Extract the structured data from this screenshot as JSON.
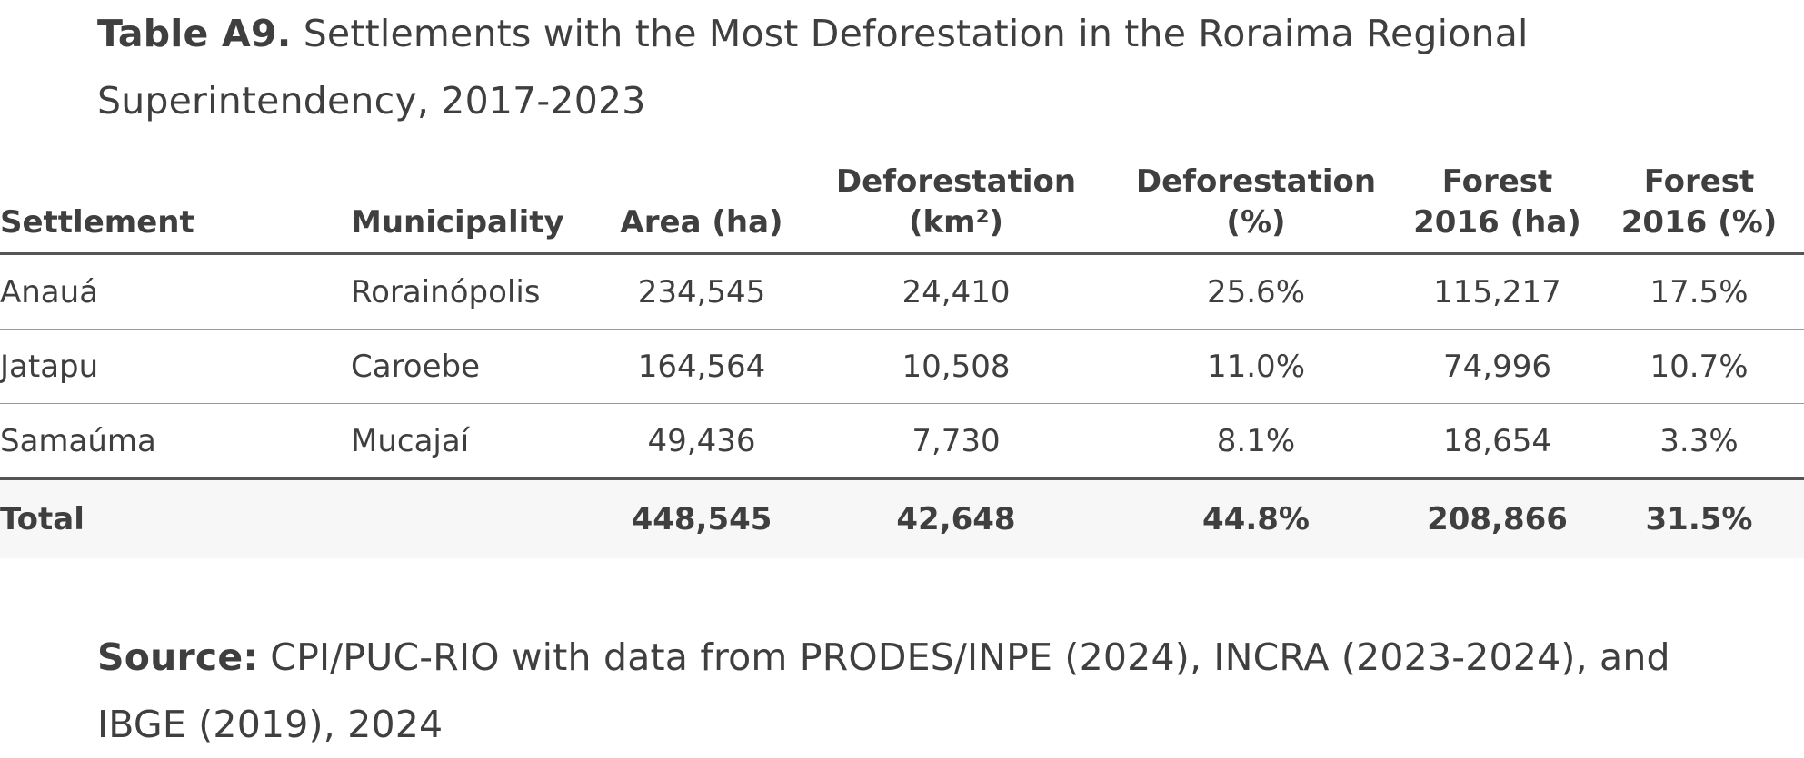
{
  "caption": {
    "lead": "Table A9.",
    "text": "Settlements with the Most Deforestation in the Roraima Regional Superintendency, 2017-2023"
  },
  "table": {
    "headers": [
      {
        "line1": "",
        "line2": "Settlement"
      },
      {
        "line1": "",
        "line2": "Municipality"
      },
      {
        "line1": "",
        "line2": "Area (ha)"
      },
      {
        "line1": "Deforestation",
        "line2": "(km²)"
      },
      {
        "line1": "Deforestation",
        "line2": "(%)"
      },
      {
        "line1": "Forest",
        "line2": "2016 (ha)"
      },
      {
        "line1": "Forest",
        "line2": "2016 (%)"
      }
    ],
    "rows": [
      {
        "settlement": "Anauá",
        "municipality": "Rorainópolis",
        "area": "234,545",
        "def_km2": "24,410",
        "def_pct": "25.6%",
        "forest_ha": "115,217",
        "forest_pct": "17.5%"
      },
      {
        "settlement": "Jatapu",
        "municipality": "Caroebe",
        "area": "164,564",
        "def_km2": "10,508",
        "def_pct": "11.0%",
        "forest_ha": "74,996",
        "forest_pct": "10.7%"
      },
      {
        "settlement": "Samaúma",
        "municipality": "Mucajaí",
        "area": "49,436",
        "def_km2": "7,730",
        "def_pct": "8.1%",
        "forest_ha": "18,654",
        "forest_pct": "3.3%"
      }
    ],
    "total": {
      "label": "Total",
      "municipality": "",
      "area": "448,545",
      "def_km2": "42,648",
      "def_pct": "44.8%",
      "forest_ha": "208,866",
      "forest_pct": "31.5%"
    }
  },
  "source": {
    "lead": "Source:",
    "text": "CPI/PUC-RIO with data from PRODES/INPE (2024), INCRA (2023-2024), and IBGE (2019), 2024"
  },
  "colors": {
    "text": "#3f3f3f",
    "rule_heavy": "#555555",
    "rule_light": "#9a9a9a",
    "total_bg": "#f7f7f7"
  }
}
